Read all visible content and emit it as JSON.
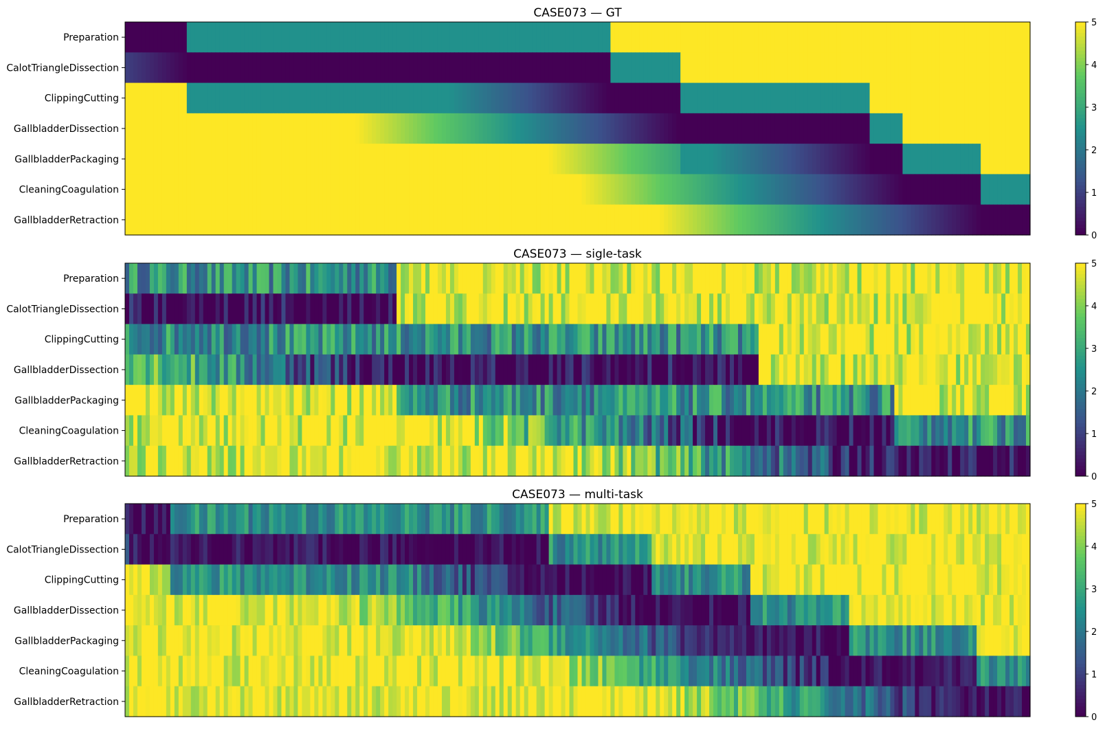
{
  "colors": {
    "viridis": [
      "#440154",
      "#3b528b",
      "#21918c",
      "#5ec962",
      "#fde725"
    ]
  },
  "chart_data": [
    {
      "type": "heatmap",
      "title": "CASE073 — GT",
      "phases": [
        "Preparation",
        "CalotTriangleDissection",
        "ClippingCutting",
        "GallbladderDissection",
        "GallbladderPackaging",
        "CleaningCoagulation",
        "GallbladderRetraction"
      ],
      "colorbar": {
        "min": 0,
        "max": 5,
        "ticks": [
          "0",
          "1",
          "2",
          "3",
          "4",
          "5"
        ]
      },
      "value_range": [
        0,
        5
      ],
      "active_segments": [
        {
          "phase": 0,
          "start": 0.0,
          "end": 0.07
        },
        {
          "phase": 1,
          "start": 0.07,
          "end": 0.535
        },
        {
          "phase": 2,
          "start": 0.535,
          "end": 0.612
        },
        {
          "phase": 3,
          "start": 0.612,
          "end": 0.825
        },
        {
          "phase": 4,
          "start": 0.825,
          "end": 0.86
        },
        {
          "phase": 5,
          "start": 0.86,
          "end": 0.947
        },
        {
          "phase": 6,
          "start": 0.947,
          "end": 1.0
        }
      ],
      "noise": 0
    },
    {
      "type": "heatmap",
      "title": "CASE073 — sigle-task",
      "phases": [
        "Preparation",
        "CalotTriangleDissection",
        "ClippingCutting",
        "GallbladderDissection",
        "GallbladderPackaging",
        "CleaningCoagulation",
        "GallbladderRetraction"
      ],
      "colorbar": {
        "min": 0,
        "max": 5,
        "ticks": [
          "0",
          "1",
          "2",
          "3",
          "4",
          "5"
        ]
      },
      "value_range": [
        0,
        5
      ],
      "active_segments": [
        {
          "phase": 1,
          "start": 0.0,
          "end": 0.3
        },
        {
          "phase": 3,
          "start": 0.3,
          "end": 0.7
        },
        {
          "phase": 5,
          "start": 0.7,
          "end": 0.85
        },
        {
          "phase": 6,
          "start": 0.85,
          "end": 1.0
        }
      ],
      "noise": 1
    },
    {
      "type": "heatmap",
      "title": "CASE073 — multi-task",
      "phases": [
        "Preparation",
        "CalotTriangleDissection",
        "ClippingCutting",
        "GallbladderDissection",
        "GallbladderPackaging",
        "CleaningCoagulation",
        "GallbladderRetraction"
      ],
      "colorbar": {
        "min": 0,
        "max": 5,
        "ticks": [
          "0",
          "1",
          "2",
          "3",
          "4",
          "5"
        ]
      },
      "value_range": [
        0,
        5
      ],
      "active_segments": [
        {
          "phase": 0,
          "start": 0.0,
          "end": 0.05
        },
        {
          "phase": 1,
          "start": 0.05,
          "end": 0.47
        },
        {
          "phase": 2,
          "start": 0.47,
          "end": 0.58
        },
        {
          "phase": 3,
          "start": 0.58,
          "end": 0.69
        },
        {
          "phase": 4,
          "start": 0.69,
          "end": 0.8
        },
        {
          "phase": 5,
          "start": 0.8,
          "end": 0.94
        },
        {
          "phase": 6,
          "start": 0.94,
          "end": 1.0
        }
      ],
      "noise": 0.7
    }
  ]
}
